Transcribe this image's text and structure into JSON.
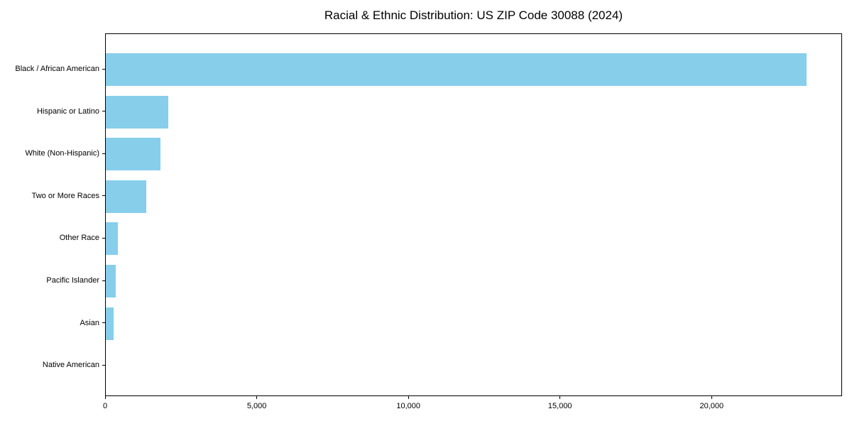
{
  "chart_data": {
    "type": "bar",
    "orientation": "horizontal",
    "title": "Racial & Ethnic Distribution: US ZIP Code 30088 (2024)",
    "categories": [
      "Black / African American",
      "Hispanic or Latino",
      "White (Non-Hispanic)",
      "Two or More Races",
      "Other Race",
      "Pacific Islander",
      "Asian",
      "Native American"
    ],
    "values": [
      23100,
      2050,
      1800,
      1335,
      390,
      320,
      265,
      0
    ],
    "xlabel": "",
    "ylabel": "",
    "xlim": [
      0,
      24300
    ],
    "xticks": [
      {
        "value": 0,
        "label": "0"
      },
      {
        "value": 5000,
        "label": "5,000"
      },
      {
        "value": 10000,
        "label": "10,000"
      },
      {
        "value": 15000,
        "label": "15,000"
      },
      {
        "value": 20000,
        "label": "20,000"
      }
    ],
    "bar_color": "#87CEEB",
    "grid": false,
    "legend_position": "none",
    "plot_background": "#ffffff",
    "axis_color": "#000000",
    "text_color": "#000000"
  }
}
